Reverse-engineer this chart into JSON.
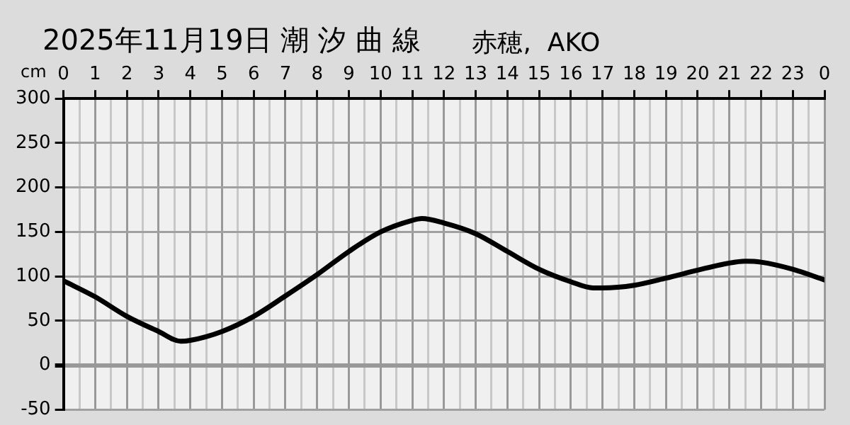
{
  "chart_data": {
    "type": "line",
    "title": "2025年11月19日 潮 汐 曲 線",
    "subtitle": "赤穂,  AKO",
    "ylabel": "cm",
    "x": [
      "2025-11-19T00:00",
      "2025-11-19T01:00",
      "2025-11-19T02:00",
      "2025-11-19T03:00",
      "2025-11-19T03:42",
      "2025-11-19T04:00",
      "2025-11-19T05:00",
      "2025-11-19T06:00",
      "2025-11-19T07:00",
      "2025-11-19T08:00",
      "2025-11-19T09:00",
      "2025-11-19T10:00",
      "2025-11-19T11:00",
      "2025-11-19T11:18",
      "2025-11-19T12:00",
      "2025-11-19T13:00",
      "2025-11-19T14:00",
      "2025-11-19T15:00",
      "2025-11-19T16:00",
      "2025-11-19T16:42",
      "2025-11-19T17:00",
      "2025-11-19T18:00",
      "2025-11-19T19:00",
      "2025-11-19T20:00",
      "2025-11-19T21:00",
      "2025-11-19T21:30",
      "2025-11-19T22:00",
      "2025-11-19T23:00",
      "2025-11-20T00:00"
    ],
    "series": [
      {
        "color": "#000000",
        "values": [
          95,
          77,
          55,
          38,
          27,
          28,
          38,
          55,
          78,
          102,
          128,
          150,
          163,
          165,
          160,
          148,
          128,
          108,
          94,
          87,
          87,
          90,
          98,
          107,
          115,
          117,
          116,
          108,
          96
        ]
      }
    ],
    "xlim": [
      "2025-11-19T00:00",
      "2025-11-20T00:00"
    ],
    "xticks": [
      {
        "value": "2025-11-19T00:00",
        "label": "0"
      },
      {
        "value": "2025-11-19T00:30",
        "label": null
      },
      {
        "value": "2025-11-19T01:00",
        "label": "1"
      },
      {
        "value": "2025-11-19T01:30",
        "label": null
      },
      {
        "value": "2025-11-19T02:00",
        "label": "2"
      },
      {
        "value": "2025-11-19T02:30",
        "label": null
      },
      {
        "value": "2025-11-19T03:00",
        "label": "3"
      },
      {
        "value": "2025-11-19T03:30",
        "label": null
      },
      {
        "value": "2025-11-19T04:00",
        "label": "4"
      },
      {
        "value": "2025-11-19T04:30",
        "label": null
      },
      {
        "value": "2025-11-19T05:00",
        "label": "5"
      },
      {
        "value": "2025-11-19T05:30",
        "label": null
      },
      {
        "value": "2025-11-19T06:00",
        "label": "6"
      },
      {
        "value": "2025-11-19T06:30",
        "label": null
      },
      {
        "value": "2025-11-19T07:00",
        "label": "7"
      },
      {
        "value": "2025-11-19T07:30",
        "label": null
      },
      {
        "value": "2025-11-19T08:00",
        "label": "8"
      },
      {
        "value": "2025-11-19T08:30",
        "label": null
      },
      {
        "value": "2025-11-19T09:00",
        "label": "9"
      },
      {
        "value": "2025-11-19T09:30",
        "label": null
      },
      {
        "value": "2025-11-19T10:00",
        "label": "10"
      },
      {
        "value": "2025-11-19T10:30",
        "label": null
      },
      {
        "value": "2025-11-19T11:00",
        "label": "11"
      },
      {
        "value": "2025-11-19T11:30",
        "label": null
      },
      {
        "value": "2025-11-19T12:00",
        "label": "12"
      },
      {
        "value": "2025-11-19T12:30",
        "label": null
      },
      {
        "value": "2025-11-19T13:00",
        "label": "13"
      },
      {
        "value": "2025-11-19T13:30",
        "label": null
      },
      {
        "value": "2025-11-19T14:00",
        "label": "14"
      },
      {
        "value": "2025-11-19T14:30",
        "label": null
      },
      {
        "value": "2025-11-19T15:00",
        "label": "15"
      },
      {
        "value": "2025-11-19T15:30",
        "label": null
      },
      {
        "value": "2025-11-19T16:00",
        "label": "16"
      },
      {
        "value": "2025-11-19T16:30",
        "label": null
      },
      {
        "value": "2025-11-19T17:00",
        "label": "17"
      },
      {
        "value": "2025-11-19T17:30",
        "label": null
      },
      {
        "value": "2025-11-19T18:00",
        "label": "18"
      },
      {
        "value": "2025-11-19T18:30",
        "label": null
      },
      {
        "value": "2025-11-19T19:00",
        "label": "19"
      },
      {
        "value": "2025-11-19T19:30",
        "label": null
      },
      {
        "value": "2025-11-19T20:00",
        "label": "20"
      },
      {
        "value": "2025-11-19T20:30",
        "label": null
      },
      {
        "value": "2025-11-19T21:00",
        "label": "21"
      },
      {
        "value": "2025-11-19T21:30",
        "label": null
      },
      {
        "value": "2025-11-19T22:00",
        "label": "22"
      },
      {
        "value": "2025-11-19T22:30",
        "label": null
      },
      {
        "value": "2025-11-19T23:00",
        "label": "23"
      },
      {
        "value": "2025-11-19T23:30",
        "label": null
      },
      {
        "value": "2025-11-20T00:00",
        "label": "0"
      }
    ],
    "ylim": [
      -50,
      300
    ],
    "yticks": [
      -50,
      0,
      50,
      100,
      150,
      200,
      250,
      300
    ],
    "grid": true,
    "legend": false,
    "marker": "none",
    "line_style": "solid"
  }
}
